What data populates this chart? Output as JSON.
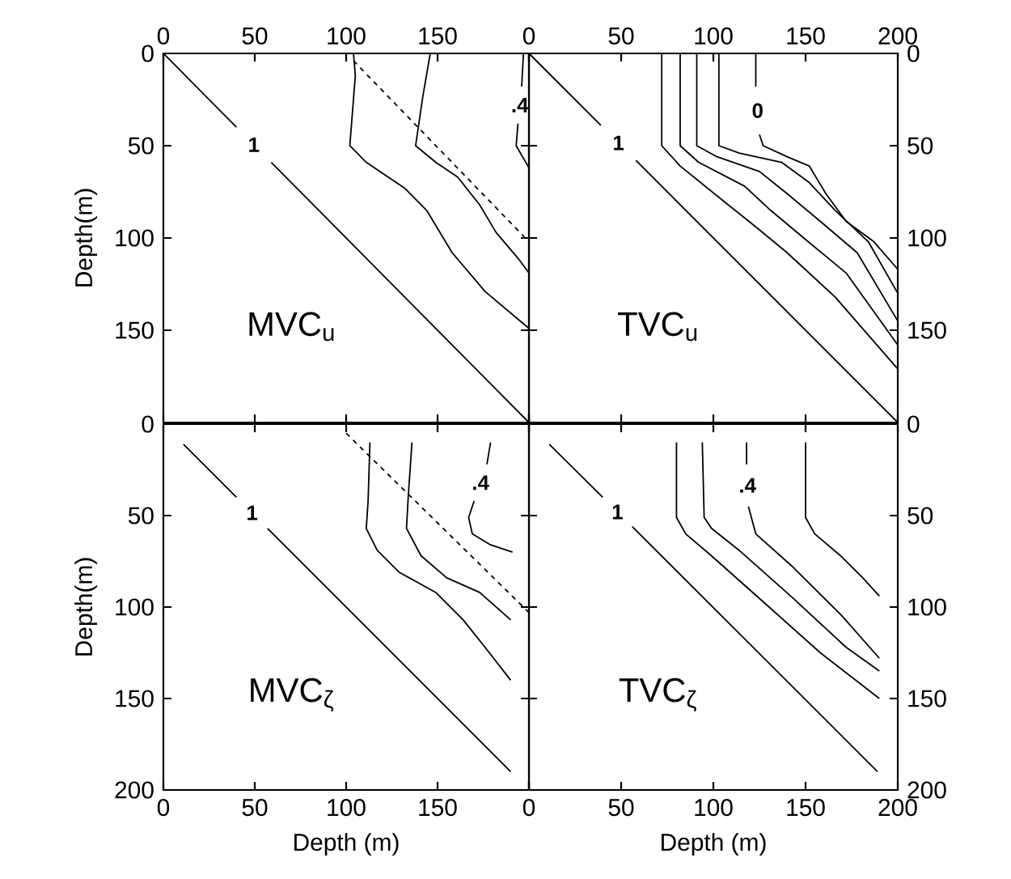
{
  "chart_data": [
    {
      "type": "line",
      "ylabel": "Depth(m)",
      "xlim": [
        0,
        200
      ],
      "ylim": [
        200,
        0
      ],
      "xticks": [
        0,
        50,
        100,
        150,
        {
          "value": 200,
          "label": null
        }
      ],
      "yticks": [
        0,
        50,
        100,
        150
      ],
      "annotations": [
        "MVC$_{u}$"
      ],
      "series": [
        {
          "name": "1",
          "color": "#000000",
          "x": [
            0,
            40,
            null,
            59,
            200
          ],
          "values": [
            0,
            40,
            null,
            59,
            200
          ]
        },
        {
          "color": "#000000",
          "x": [
            104,
            105,
            102,
            111,
            132,
            144,
            158,
            176,
            200
          ],
          "values": [
            0,
            12,
            50,
            59,
            73,
            85,
            108,
            129,
            149
          ]
        },
        {
          "color": "#000000",
          "x": [
            146,
            142,
            138,
            149,
            161,
            173,
            182,
            194,
            200
          ],
          "values": [
            0,
            23,
            50,
            59,
            67,
            82,
            97,
            111,
            119
          ]
        },
        {
          "color": "#000000",
          "line_style": "dashed",
          "x": [
            104,
            200
          ],
          "values": [
            4,
            102
          ]
        },
        {
          "name": ".4",
          "color": "#000000",
          "x": [
            197,
            196,
            null,
            194,
            193,
            200
          ],
          "values": [
            0,
            18,
            null,
            38,
            50,
            62
          ]
        }
      ]
    },
    {
      "type": "line",
      "xlim": [
        0,
        200
      ],
      "ylim": [
        200,
        0
      ],
      "xticks": [
        0,
        50,
        100,
        150,
        200
      ],
      "yticks": [
        0,
        50,
        100,
        150
      ],
      "annotations": [
        "TVC$_{u}$"
      ],
      "series": [
        {
          "name": "1",
          "color": "#000000",
          "x": [
            0,
            39,
            null,
            58,
            200
          ],
          "values": [
            0,
            39,
            null,
            58,
            200
          ]
        },
        {
          "color": "#000000",
          "x": [
            72,
            72,
            82,
            108,
            123,
            140,
            166,
            200
          ],
          "values": [
            0,
            50,
            61,
            82,
            94,
            108,
            132,
            171
          ]
        },
        {
          "color": "#000000",
          "x": [
            82,
            82,
            92,
            117,
            131,
            149,
            172,
            200
          ],
          "values": [
            0,
            50,
            59,
            72,
            85,
            100,
            119,
            158
          ]
        },
        {
          "color": "#000000",
          "x": [
            91,
            91,
            102,
            125,
            140,
            158,
            178,
            200
          ],
          "values": [
            0,
            50,
            56,
            64,
            76,
            91,
            108,
            145
          ]
        },
        {
          "color": "#000000",
          "x": [
            103,
            103,
            114,
            137,
            152,
            166,
            184,
            200
          ],
          "values": [
            0,
            50,
            54,
            59,
            70,
            85,
            102,
            130
          ]
        },
        {
          "name": "0",
          "color": "#000000",
          "x": [
            123,
            123,
            null,
            125,
            127,
            140,
            152,
            161,
            172,
            187,
            200
          ],
          "values": [
            0,
            18,
            null,
            44,
            50,
            56,
            61,
            76,
            91,
            102,
            117
          ]
        }
      ]
    },
    {
      "type": "line",
      "xlabel": "Depth (m)",
      "ylabel": "Depth(m)",
      "xlim": [
        0,
        200
      ],
      "ylim": [
        200,
        0
      ],
      "xticks": [
        0,
        50,
        100,
        150,
        {
          "value": 200,
          "label": null
        }
      ],
      "yticks": [
        0,
        50,
        100,
        150,
        200
      ],
      "annotations": [
        "MVC$_{ζ}$"
      ],
      "series": [
        {
          "name": "1",
          "color": "#000000",
          "x": [
            11,
            40,
            null,
            57,
            190
          ],
          "values": [
            11,
            40,
            null,
            57,
            190
          ]
        },
        {
          "color": "#000000",
          "x": [
            113,
            112,
            111,
            117,
            129,
            149,
            164,
            176,
            190
          ],
          "values": [
            10,
            42,
            57,
            69,
            81,
            92,
            107,
            122,
            140
          ]
        },
        {
          "color": "#000000",
          "x": [
            136,
            134,
            133,
            141,
            155,
            173,
            190
          ],
          "values": [
            10,
            39,
            57,
            72,
            84,
            92,
            107
          ]
        },
        {
          "color": "#000000",
          "line_style": "dashed",
          "x": [
            100,
            200
          ],
          "values": [
            5,
            103
          ]
        },
        {
          "name": ".4",
          "color": "#000000",
          "x": [
            179,
            177,
            null,
            170,
            167,
            169,
            179,
            191
          ],
          "values": [
            10,
            22,
            null,
            42,
            51,
            60,
            66,
            70
          ]
        }
      ]
    },
    {
      "type": "line",
      "xlabel": "Depth (m)",
      "xlim": [
        0,
        200
      ],
      "ylim": [
        200,
        0
      ],
      "xticks": [
        0,
        50,
        100,
        150,
        200
      ],
      "yticks": [
        0,
        50,
        100,
        150,
        200
      ],
      "annotations": [
        "TVC$_{ζ}$"
      ],
      "series": [
        {
          "name": "1",
          "color": "#000000",
          "x": [
            11,
            40,
            null,
            56,
            189
          ],
          "values": [
            11,
            40,
            null,
            56,
            190
          ]
        },
        {
          "color": "#000000",
          "x": [
            80,
            80,
            85,
            99,
            128,
            158,
            190
          ],
          "values": [
            10,
            51,
            60,
            72,
            98,
            125,
            150
          ]
        },
        {
          "color": "#000000",
          "x": [
            94,
            95,
            99,
            114,
            143,
            172,
            190
          ],
          "values": [
            10,
            51,
            57,
            69,
            95,
            122,
            135
          ]
        },
        {
          "name": ".4",
          "color": "#000000",
          "x": [
            118,
            118,
            null,
            119,
            123,
            143,
            169,
            190
          ],
          "values": [
            10,
            22,
            null,
            45,
            60,
            78,
            104,
            128
          ]
        },
        {
          "color": "#000000",
          "x": [
            150,
            150,
            155,
            169,
            181,
            190
          ],
          "values": [
            10,
            51,
            60,
            72,
            84,
            94
          ]
        }
      ]
    }
  ]
}
